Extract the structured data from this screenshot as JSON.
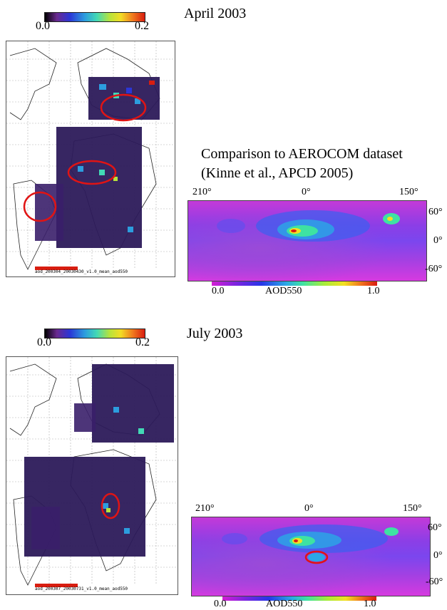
{
  "april": {
    "title": "April 2003",
    "colorbar": {
      "min": "0.0",
      "max": "0.2"
    },
    "map_footer": "aod_200304_20030430_v1.0_mean_aod550"
  },
  "july": {
    "title": "July 2003",
    "colorbar": {
      "min": "0.0",
      "max": "0.2"
    },
    "map_footer": "aod_200307_20030731_v1.0_mean_aod550"
  },
  "comparison": {
    "line1": "Comparison to AEROCOM dataset",
    "line2": "(Kinne et al., APCD 2005)"
  },
  "aerocom_top": {
    "lon_labels": [
      "210°",
      "0°",
      "150°"
    ],
    "lat_labels": [
      "60°",
      "0°",
      "-60°"
    ],
    "colorbar": {
      "min": "0.0",
      "label": "AOD550",
      "max": "1.0"
    }
  },
  "aerocom_bottom": {
    "lon_labels": [
      "210°",
      "0°",
      "150°"
    ],
    "lat_labels": [
      "60°",
      "0°",
      "-60°"
    ],
    "colorbar": {
      "min": "0.0",
      "label": "AOD550",
      "max": "1.0"
    }
  },
  "colors": {
    "highlight_circle": "#e01414",
    "grid": "#9a9a9a"
  }
}
